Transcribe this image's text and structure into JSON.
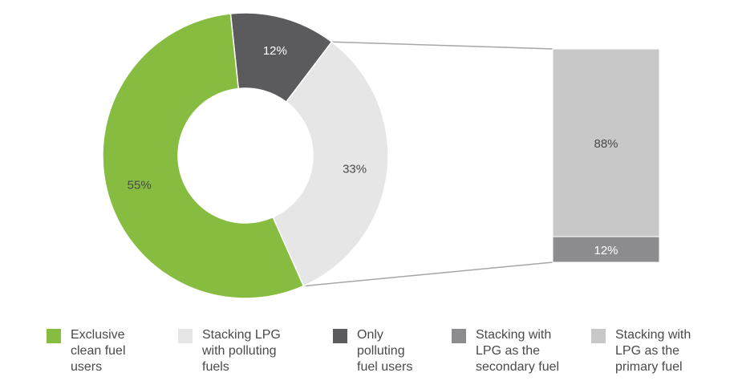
{
  "chart_data": [
    {
      "type": "pie",
      "variant": "donut",
      "categories": [
        "Exclusive clean fuel users",
        "Stacking LPG with polluting fuels",
        "Only polluting fuel users"
      ],
      "values": [
        55,
        33,
        12
      ],
      "labels": [
        "55%",
        "33%",
        "12%"
      ],
      "colors": [
        "#86bc3f",
        "#e6e6e6",
        "#5b5b5d"
      ]
    },
    {
      "type": "bar",
      "variant": "stacked-100",
      "categories": [
        "Stacking with LPG as the primary fuel",
        "Stacking with LPG as the secondary fuel"
      ],
      "values": [
        88,
        12
      ],
      "labels": [
        "88%",
        "12%"
      ],
      "colors": [
        "#c8c8c9",
        "#8c8c8e"
      ]
    }
  ],
  "legend": [
    {
      "label": "Exclusive\nclean fuel\nusers",
      "color": "#86bc3f"
    },
    {
      "label": "Stacking LPG\nwith polluting\nfuels",
      "color": "#e6e6e6"
    },
    {
      "label": "Only\npolluting\nfuel users",
      "color": "#5b5b5d"
    },
    {
      "label": "Stacking with\nLPG as the\nsecondary fuel",
      "color": "#8c8c8e"
    },
    {
      "label": "Stacking with\nLPG as the\nprimary fuel",
      "color": "#c8c8c9"
    }
  ]
}
